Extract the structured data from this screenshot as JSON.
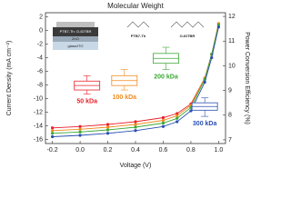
{
  "chart_data": {
    "type": "line",
    "title": "Molecular Weight",
    "x_label": "Voltage (V)",
    "y_label": "Current Density (mA cm⁻²)",
    "y2_label": "Power Conversion Efficiency (%)",
    "xlim": [
      -0.25,
      1.05
    ],
    "xticks": [
      -0.2,
      {
        "value": 0,
        "label": "0.0"
      },
      0.2,
      0.4,
      0.6,
      0.8,
      {
        "value": 1,
        "label": "1.0"
      }
    ],
    "ylim": [
      -16.6,
      2.6
    ],
    "yticks": [
      2,
      0,
      -2,
      -4,
      -6,
      -8,
      -10,
      -12,
      -14,
      -16
    ],
    "y2lim": [
      6.85,
      12.15
    ],
    "y2ticks": [
      7,
      8,
      9,
      10,
      11,
      12
    ],
    "x": [
      -0.2,
      0,
      0.2,
      0.4,
      0.6,
      0.7,
      0.8,
      0.9,
      0.95,
      1.0
    ],
    "series": [
      {
        "name": "50 kDa",
        "color": "#e8202a",
        "values": [
          -14.3,
          -14.1,
          -13.8,
          -13.4,
          -12.8,
          -12.2,
          -10.8,
          -7,
          -3.5,
          1
        ]
      },
      {
        "name": "100 kDa",
        "color": "#f08a1c",
        "values": [
          -14.7,
          -14.5,
          -14.2,
          -13.8,
          -13.2,
          -12.5,
          -11,
          -7,
          -3.5,
          1
        ]
      },
      {
        "name": "200 kDa",
        "color": "#3aa935",
        "values": [
          -15.1,
          -14.9,
          -14.6,
          -14.2,
          -13.6,
          -12.9,
          -11.3,
          -7.2,
          -3.5,
          0.8
        ]
      },
      {
        "name": "300 kDa",
        "color": "#2a4fb0",
        "values": [
          -15.6,
          -15.4,
          -15.1,
          -14.7,
          -14.1,
          -13.4,
          -11.8,
          -7.6,
          -4,
          0.5
        ]
      }
    ],
    "boxes": [
      {
        "x": 0.05,
        "min": 8.85,
        "q1": 9.02,
        "median": 9.2,
        "q3": 9.38,
        "max": 9.6
      },
      {
        "x": 0.32,
        "min": 9.02,
        "q1": 9.2,
        "median": 9.4,
        "q3": 9.6,
        "max": 9.85
      },
      {
        "x": 0.62,
        "min": 9.85,
        "q1": 10.1,
        "median": 10.3,
        "q3": 10.5,
        "max": 10.75
      },
      {
        "x": 0.9,
        "min": 7.95,
        "q1": 8.2,
        "median": 8.35,
        "q3": 8.5,
        "max": 8.7
      }
    ],
    "inset": {
      "layers": [
        "PTB7-Th: O-IDTBR",
        "ZnO",
        "glass/ITO"
      ],
      "molecules": [
        "PTB7-Th",
        "O-IDTBR"
      ]
    }
  }
}
